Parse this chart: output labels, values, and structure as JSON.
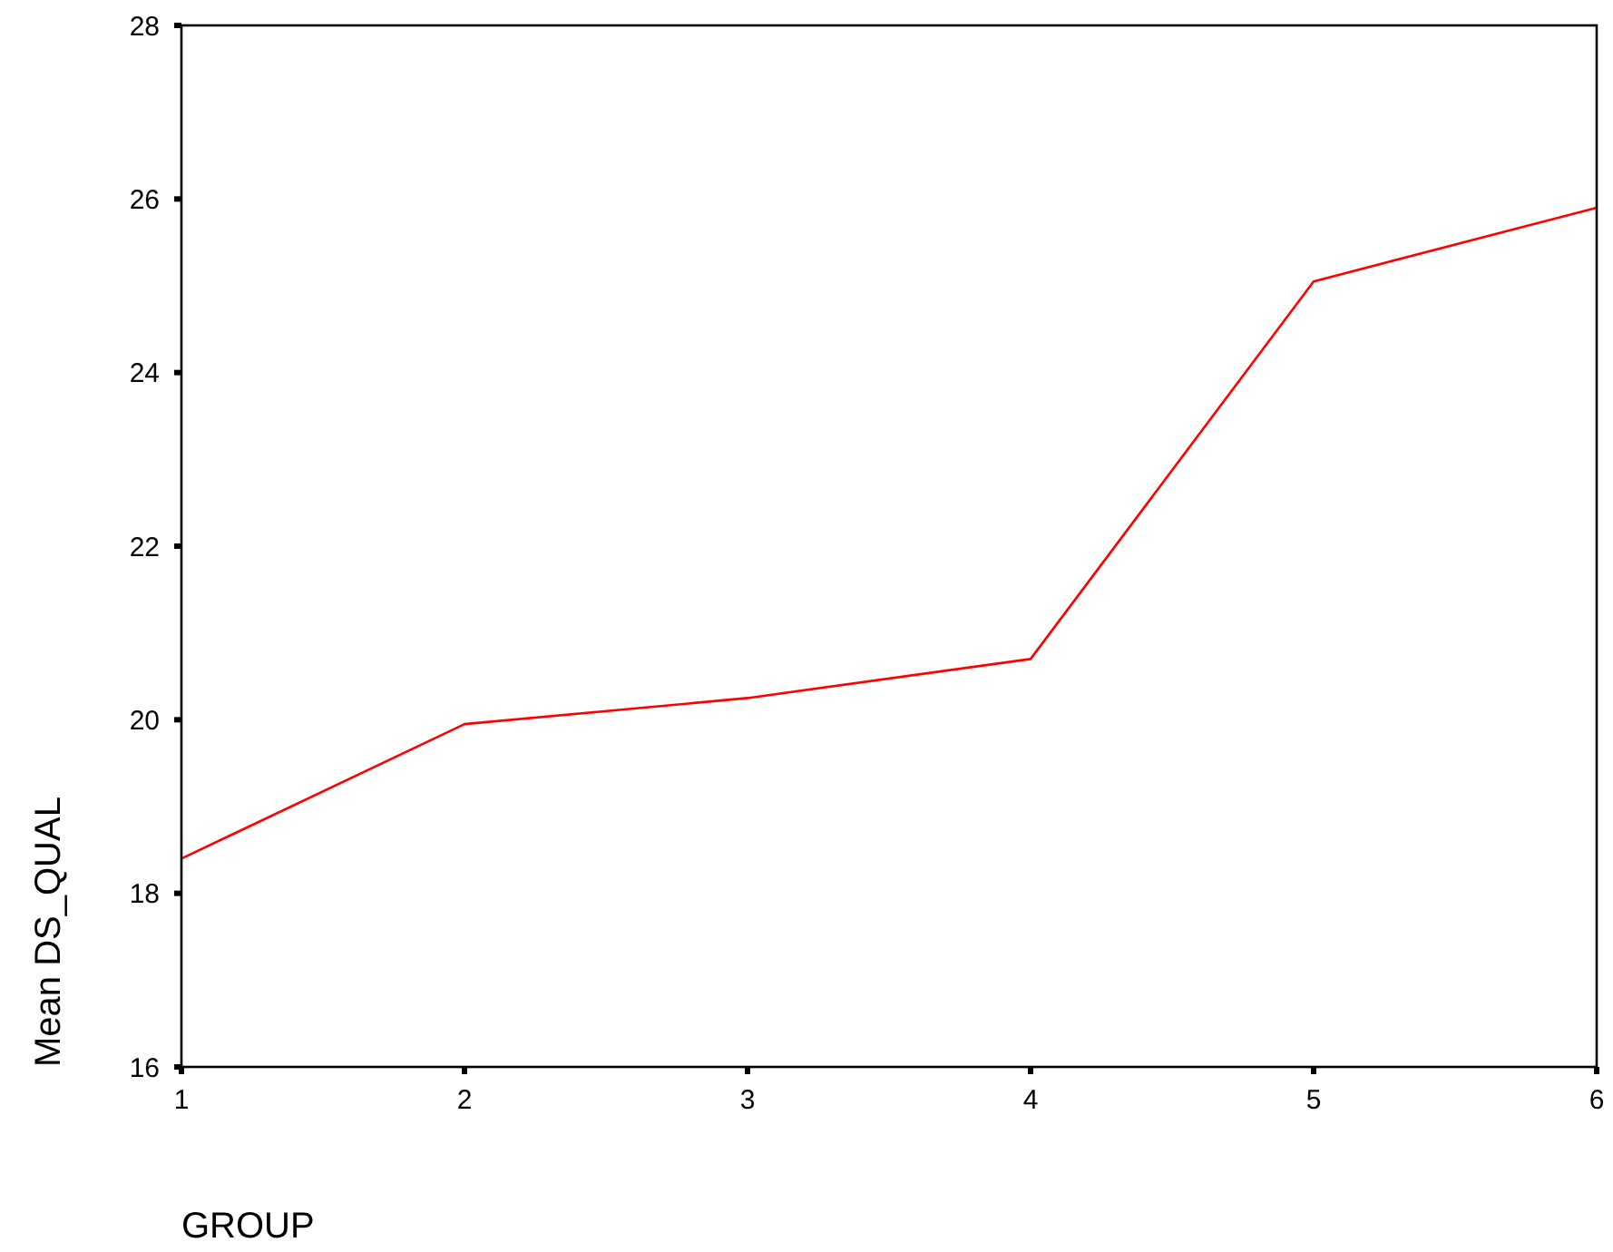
{
  "chart_data": {
    "type": "line",
    "xlabel": "GROUP",
    "ylabel": "Mean DS_QUAL",
    "x": [
      1,
      2,
      3,
      4,
      5,
      6
    ],
    "series": [
      {
        "color": "#ff0000",
        "values": [
          18.4,
          19.95,
          20.25,
          20.7,
          25.05,
          25.9
        ]
      }
    ],
    "xlim": [
      1,
      6
    ],
    "xticks": [
      1,
      2,
      3,
      4,
      5,
      6
    ],
    "ylim": [
      16,
      28
    ],
    "yticks": [
      16,
      18,
      20,
      22,
      24,
      26,
      28
    ],
    "grid": false,
    "marker": "none",
    "line_style": "solid"
  }
}
